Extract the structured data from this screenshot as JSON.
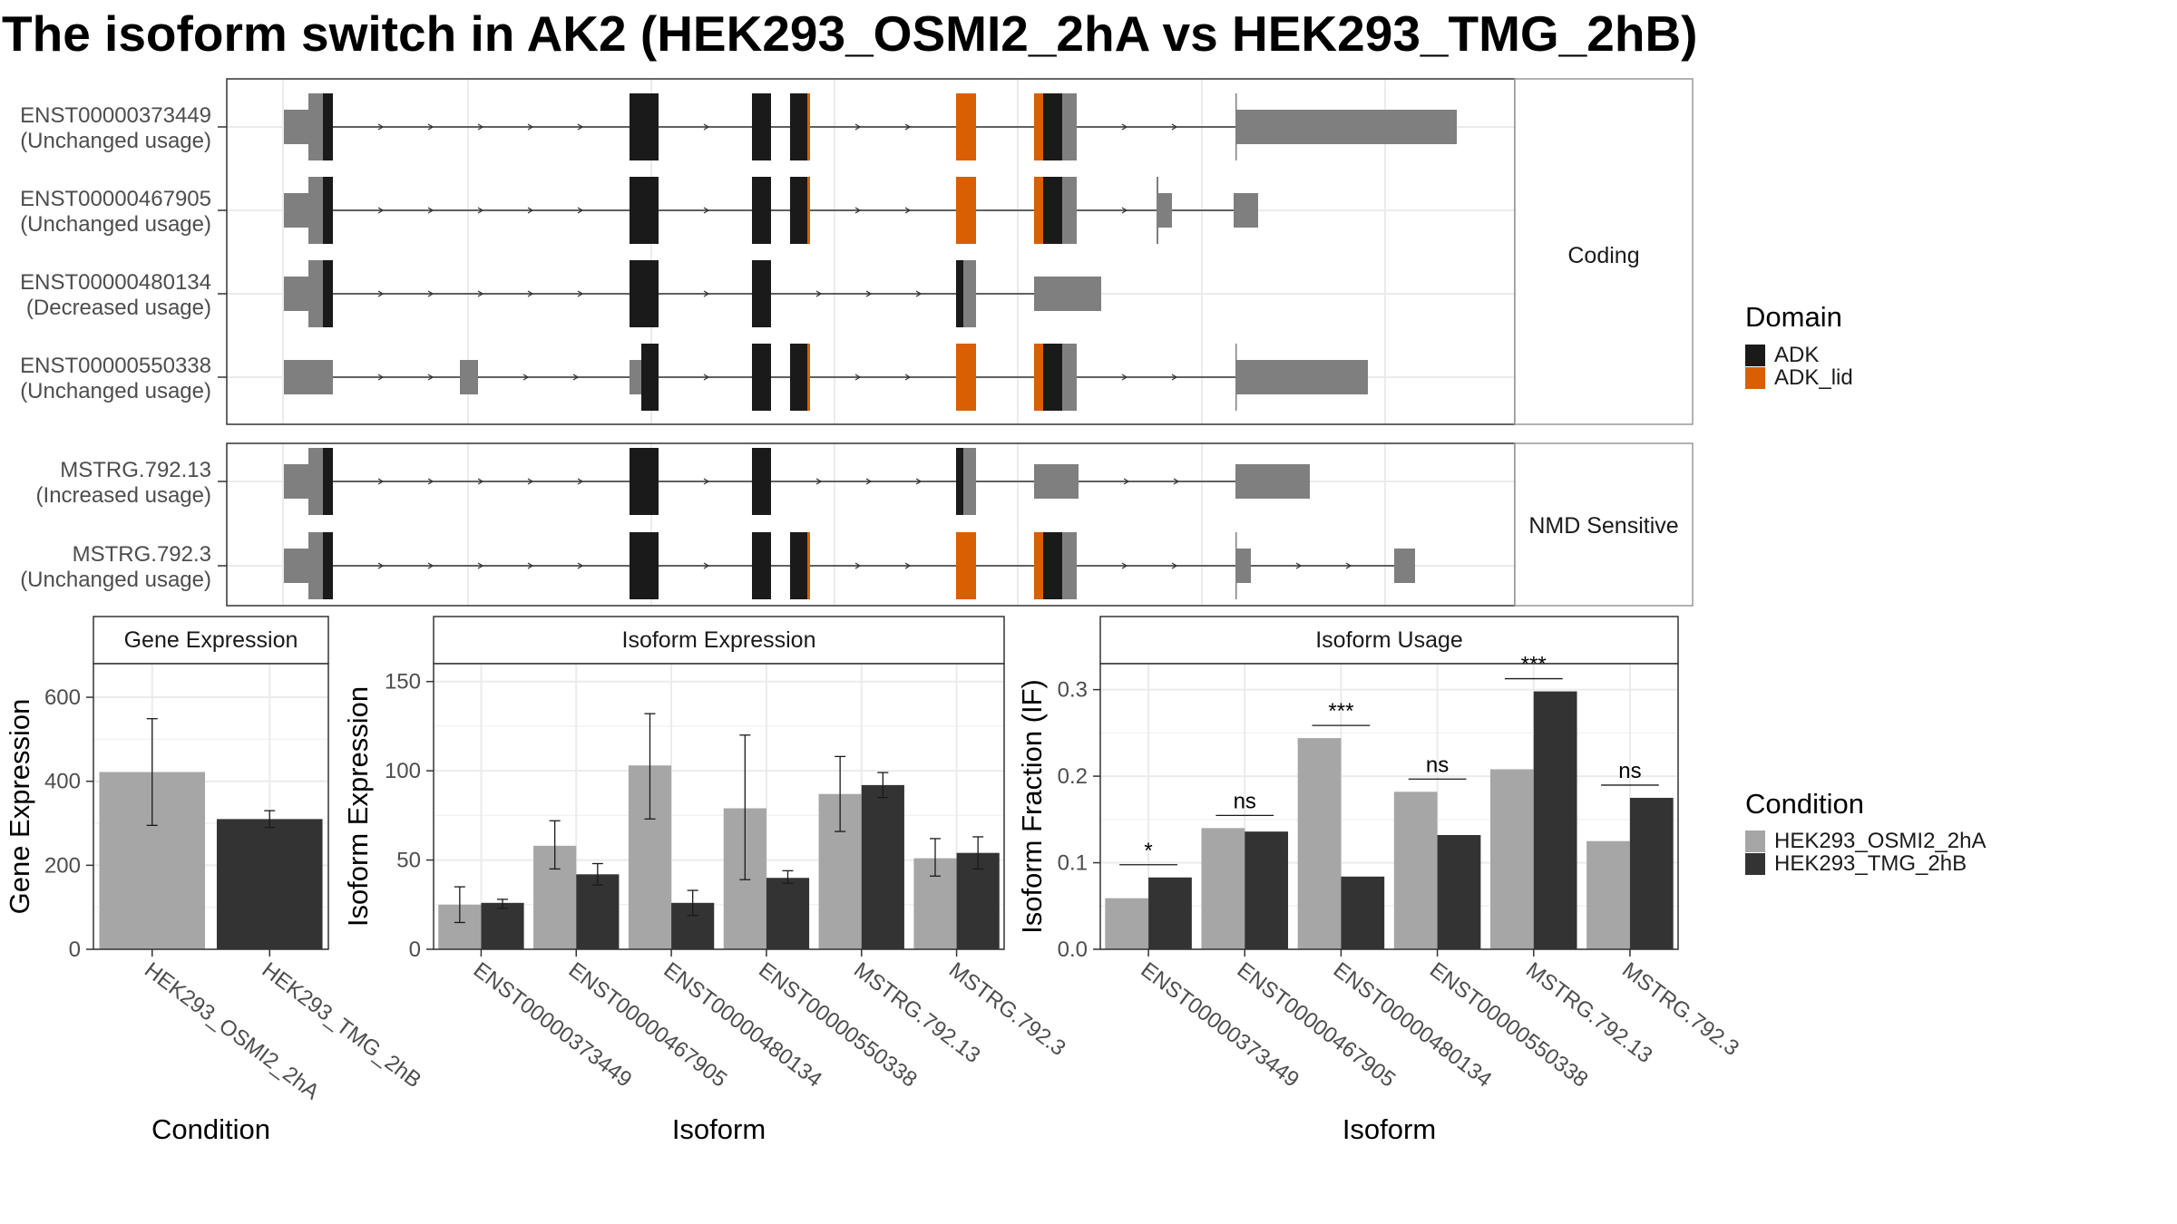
{
  "title": "The isoform switch in AK2 (HEK293_OSMI2_2hA vs HEK293_TMG_2hB)",
  "colors": {
    "cond_a": "#A6A6A6",
    "cond_b": "#333333",
    "adk": "#1A1A1A",
    "adk_lid": "#D95F02",
    "utr": "#7F7F7F",
    "grid": "#EBEBEB",
    "strip_bg": "#FFFFFF"
  },
  "isoform_structure": {
    "groups": [
      {
        "label": "Coding",
        "transcripts": [
          {
            "id": "ENST00000373449",
            "usage": "(Unchanged usage)"
          },
          {
            "id": "ENST00000467905",
            "usage": "(Unchanged usage)"
          },
          {
            "id": "ENST00000480134",
            "usage": "(Decreased usage)"
          },
          {
            "id": "ENST00000550338",
            "usage": "(Unchanged usage)"
          }
        ]
      },
      {
        "label": "NMD Sensitive",
        "transcripts": [
          {
            "id": "MSTRG.792.13",
            "usage": "(Increased usage)"
          },
          {
            "id": "MSTRG.792.3",
            "usage": "(Unchanged usage)"
          }
        ]
      }
    ],
    "domain_legend": {
      "title": "Domain",
      "items": [
        {
          "name": "ADK",
          "color": "#1A1A1A"
        },
        {
          "name": "ADK_lid",
          "color": "#D95F02"
        }
      ]
    }
  },
  "chart_data": [
    {
      "type": "bar",
      "title": "Gene Expression",
      "xlabel": "Condition",
      "ylabel": "Gene Expression",
      "categories": [
        "HEK293_OSMI2_2hA",
        "HEK293_TMG_2hB"
      ],
      "values": [
        422,
        310
      ],
      "error_low": [
        295,
        290
      ],
      "error_high": [
        549,
        330
      ],
      "ylim": [
        0,
        680
      ],
      "yticks": [
        0,
        200,
        400,
        600
      ]
    },
    {
      "type": "bar",
      "title": "Isoform Expression",
      "xlabel": "Isoform",
      "ylabel": "Isoform Expression",
      "categories": [
        "ENST00000373449",
        "ENST00000467905",
        "ENST00000480134",
        "ENST00000550338",
        "MSTRG.792.13",
        "MSTRG.792.3"
      ],
      "series": [
        {
          "name": "HEK293_OSMI2_2hA",
          "values": [
            25,
            58,
            103,
            79,
            87,
            51
          ],
          "error_low": [
            15,
            45,
            73,
            39,
            66,
            41
          ],
          "error_high": [
            35,
            72,
            132,
            120,
            108,
            62
          ]
        },
        {
          "name": "HEK293_TMG_2hB",
          "values": [
            26,
            42,
            26,
            40,
            92,
            54
          ],
          "error_low": [
            23,
            36,
            19,
            37,
            85,
            45
          ],
          "error_high": [
            28,
            48,
            33,
            44,
            99,
            63
          ]
        }
      ],
      "ylim": [
        0,
        160
      ],
      "yticks": [
        0,
        50,
        100,
        150
      ]
    },
    {
      "type": "bar",
      "title": "Isoform Usage",
      "xlabel": "Isoform",
      "ylabel": "Isoform Fraction (IF)",
      "categories": [
        "ENST00000373449",
        "ENST00000467905",
        "ENST00000480134",
        "ENST00000550338",
        "MSTRG.792.13",
        "MSTRG.792.3"
      ],
      "series": [
        {
          "name": "HEK293_OSMI2_2hA",
          "values": [
            0.059,
            0.14,
            0.244,
            0.182,
            0.208,
            0.125
          ]
        },
        {
          "name": "HEK293_TMG_2hB",
          "values": [
            0.083,
            0.136,
            0.084,
            0.132,
            0.298,
            0.175
          ]
        }
      ],
      "significance": [
        "*",
        "ns",
        "***",
        "ns",
        "***",
        "ns"
      ],
      "ylim": [
        0,
        0.33
      ],
      "yticks": [
        0.0,
        0.1,
        0.2,
        0.3
      ],
      "ytick_labels": [
        "0.0",
        "0.1",
        "0.2",
        "0.3"
      ]
    }
  ],
  "condition_legend": {
    "title": "Condition",
    "items": [
      {
        "name": "HEK293_OSMI2_2hA",
        "color": "#A6A6A6"
      },
      {
        "name": "HEK293_TMG_2hB",
        "color": "#333333"
      }
    ]
  }
}
